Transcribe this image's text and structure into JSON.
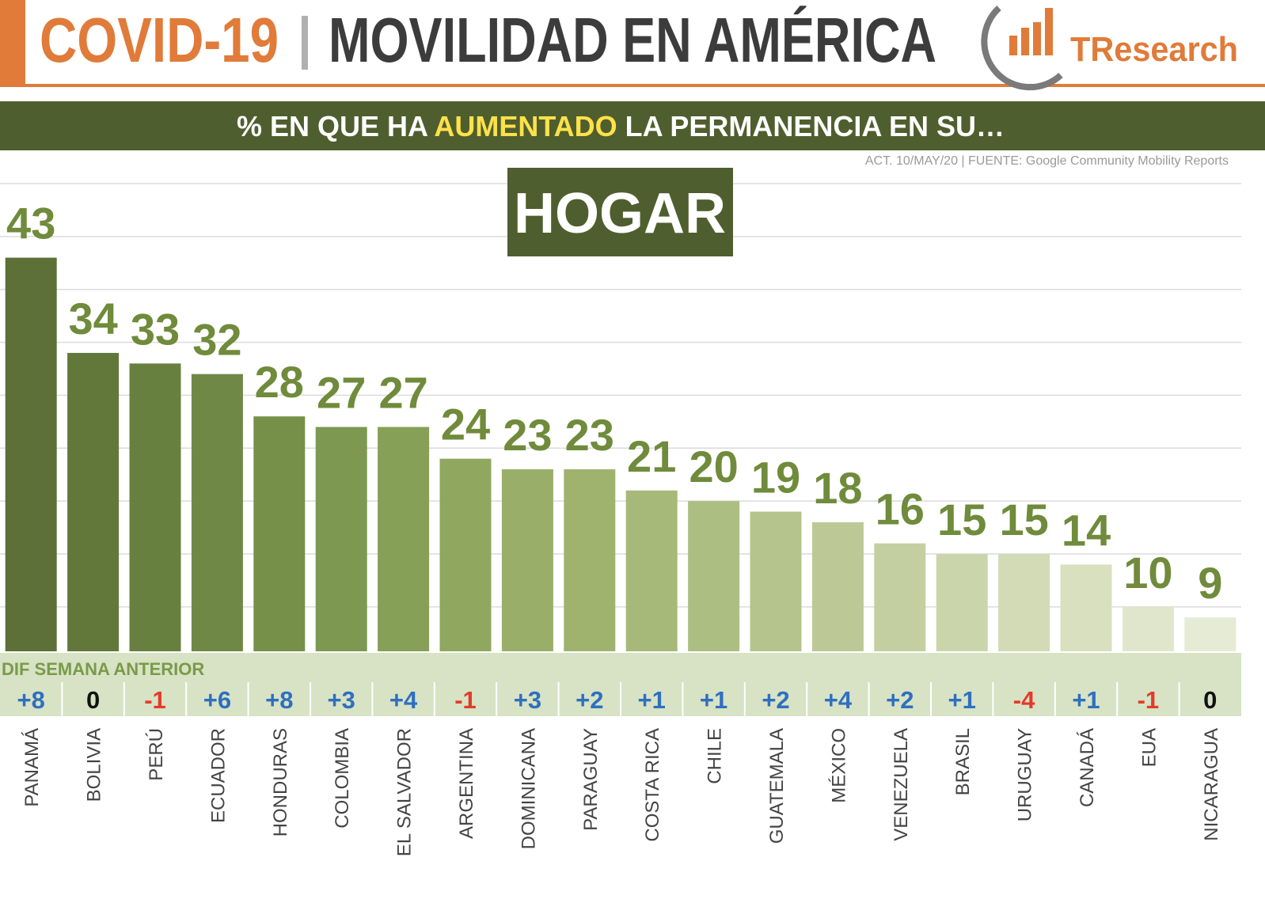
{
  "chart_data": {
    "type": "bar",
    "title": [
      "COVID-19",
      "MOVILIDAD EN AMÉRICA"
    ],
    "logo": "TResearch",
    "subtitle": [
      "% EN QUE HA",
      "AUMENTADO",
      "LA PERMANENCIA EN SU…"
    ],
    "source": "ACT. 10/MAY/20 | FUENTE: Google Community Mobility Reports",
    "panel_title": "HOGAR",
    "categories": [
      "PANAMÁ",
      "BOLIVIA",
      "PERÚ",
      "ECUADOR",
      "HONDURAS",
      "COLOMBIA",
      "EL SALVADOR",
      "ARGENTINA",
      "DOMINICANA",
      "PARAGUAY",
      "COSTA RICA",
      "CHILE",
      "GUATEMALA",
      "MÉXICO",
      "VENEZUELA",
      "BRASIL",
      "URUGUAY",
      "CANADÁ",
      "EUA",
      "NICARAGUA"
    ],
    "values": [
      43,
      34,
      33,
      32,
      28,
      27,
      27,
      24,
      23,
      23,
      21,
      20,
      19,
      18,
      16,
      15,
      15,
      14,
      10,
      9
    ],
    "colors": [
      "#5c7038",
      "#62783a",
      "#68803f",
      "#6f8845",
      "#76904a",
      "#7d9850",
      "#86a057",
      "#8fa75f",
      "#99af69",
      "#9fb36f",
      "#a6b979",
      "#adbe82",
      "#b4c48c",
      "#bcc996",
      "#c3cfa0",
      "#cbd5ab",
      "#d2dbb5",
      "#d9e0c0",
      "#e0e6cb",
      "#e6ebd5"
    ],
    "ylim": [
      5.8,
      50
    ],
    "yticks": [
      10,
      15,
      20,
      25,
      30,
      35,
      40,
      45,
      50
    ],
    "grid": true,
    "differences": {
      "name": "DIF SEMANA ANTERIOR",
      "values": [
        8,
        0,
        -1,
        6,
        8,
        3,
        4,
        -1,
        3,
        2,
        1,
        1,
        2,
        4,
        2,
        1,
        -4,
        1,
        -1,
        0
      ],
      "value_labels": [
        "+8",
        "0",
        "-1",
        "+6",
        "+8",
        "+3",
        "+4",
        "-1",
        "+3",
        "+2",
        "+1",
        "+1",
        "+2",
        "+4",
        "+2",
        "+1",
        "-4",
        "+1",
        "-1",
        "0"
      ],
      "positive_color": "#2f6fc0",
      "negative_color": "#e23b2b",
      "zero_color": "#111111"
    }
  }
}
